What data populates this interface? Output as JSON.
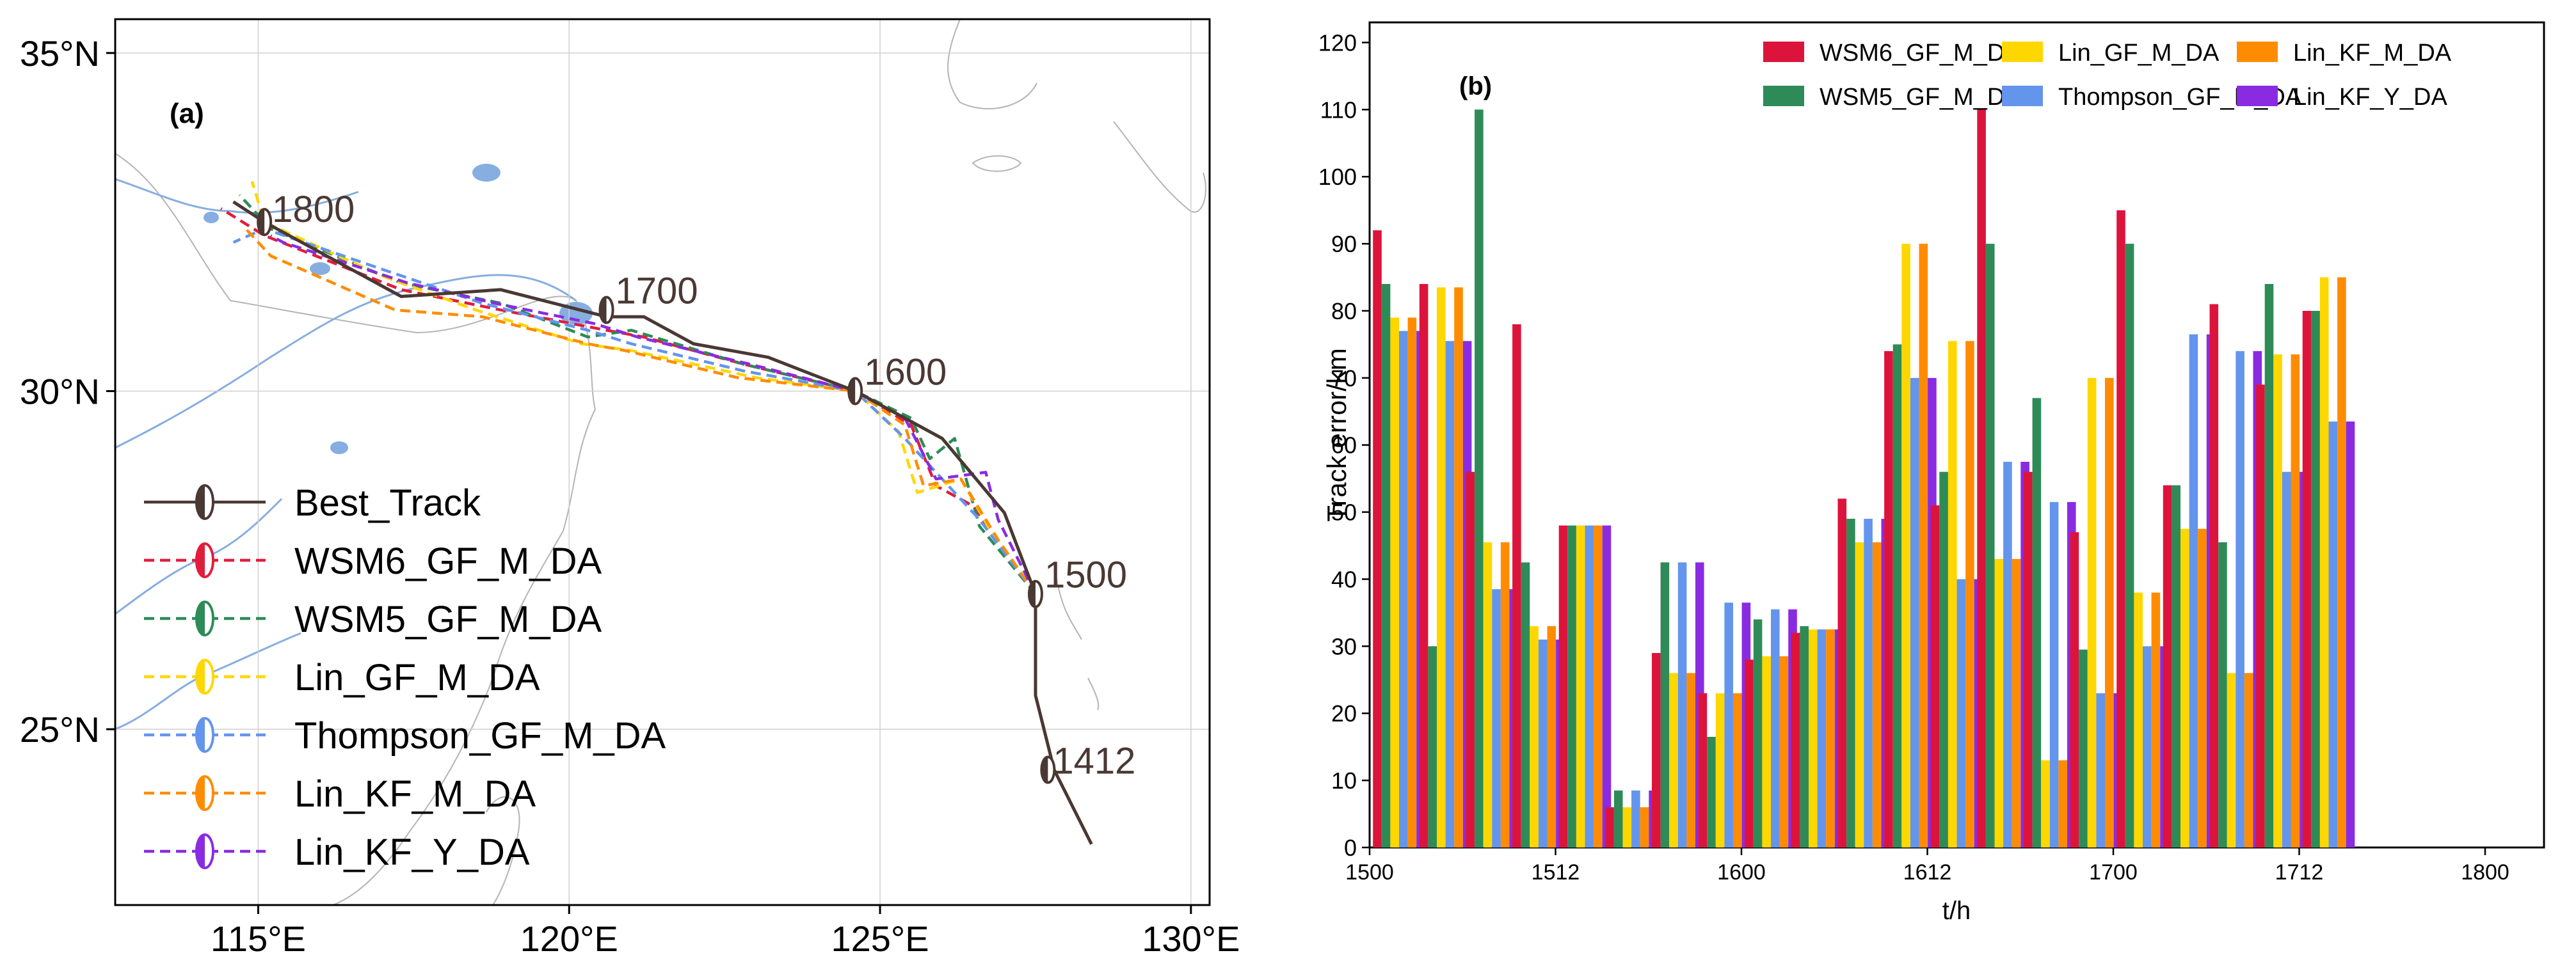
{
  "map_panel": {
    "panel_label": "(a)",
    "type": "track_map",
    "lon_range": [
      112.7,
      130.3
    ],
    "lat_range": [
      22.4,
      35.5
    ],
    "lon_ticks": [
      115,
      120,
      125,
      130
    ],
    "lon_tick_labels": [
      "115°E",
      "120°E",
      "125°E",
      "130°E"
    ],
    "lat_ticks": [
      25,
      30,
      35
    ],
    "lat_tick_labels": [
      "25°N",
      "30°N",
      "35°N"
    ],
    "time_labels": [
      {
        "text": "1800",
        "lon": 115.1,
        "lat": 32.5
      },
      {
        "text": "1700",
        "lon": 120.6,
        "lat": 31.2
      },
      {
        "text": "1600",
        "lon": 124.6,
        "lat": 30.0
      },
      {
        "text": "1500",
        "lon": 127.5,
        "lat": 27.0
      },
      {
        "text": "1412",
        "lon": 127.7,
        "lat": 24.4
      }
    ],
    "legend": [
      {
        "label": "Best_Track",
        "color": "#4a3833",
        "style": "solid"
      },
      {
        "label": "WSM6_GF_M_DA",
        "color": "#e11d3c",
        "style": "dashed"
      },
      {
        "label": "WSM5_GF_M_DA",
        "color": "#2e8b57",
        "style": "dashed"
      },
      {
        "label": "Lin_GF_M_DA",
        "color": "#ffd700",
        "style": "dashed"
      },
      {
        "label": "Thompson_GF_M_DA",
        "color": "#6495ed",
        "style": "dashed"
      },
      {
        "label": "Lin_KF_M_DA",
        "color": "#ff8c00",
        "style": "dashed"
      },
      {
        "label": "Lin_KF_Y_DA",
        "color": "#8a2be2",
        "style": "dashed"
      }
    ],
    "tracks": [
      {
        "name": "Best_Track",
        "points": [
          [
            128.4,
            23.3
          ],
          [
            127.8,
            24.4
          ],
          [
            127.5,
            25.5
          ],
          [
            127.5,
            27.0
          ],
          [
            127.0,
            28.2
          ],
          [
            126.0,
            29.3
          ],
          [
            124.6,
            30.0
          ],
          [
            123.2,
            30.5
          ],
          [
            122.0,
            30.7
          ],
          [
            121.2,
            31.1
          ],
          [
            120.6,
            31.1
          ],
          [
            118.9,
            31.5
          ],
          [
            117.3,
            31.4
          ],
          [
            115.1,
            32.5
          ],
          [
            114.6,
            32.8
          ]
        ]
      },
      {
        "name": "WSM6_GF_M_DA",
        "points": [
          [
            127.5,
            27.0
          ],
          [
            126.5,
            28.3
          ],
          [
            125.9,
            28.6
          ],
          [
            125.5,
            29.5
          ],
          [
            124.6,
            30.0
          ],
          [
            122.8,
            30.4
          ],
          [
            121.2,
            30.8
          ],
          [
            120.6,
            30.9
          ],
          [
            118.9,
            31.2
          ],
          [
            117.3,
            31.5
          ],
          [
            115.1,
            32.3
          ],
          [
            114.4,
            32.7
          ]
        ]
      },
      {
        "name": "WSM5_GF_M_DA",
        "points": [
          [
            127.5,
            27.0
          ],
          [
            126.6,
            28.0
          ],
          [
            126.2,
            29.3
          ],
          [
            125.8,
            29.0
          ],
          [
            125.5,
            29.6
          ],
          [
            124.6,
            30.0
          ],
          [
            122.8,
            30.4
          ],
          [
            121.0,
            30.9
          ],
          [
            120.3,
            30.8
          ],
          [
            118.9,
            31.3
          ],
          [
            117.3,
            31.6
          ],
          [
            115.2,
            32.4
          ],
          [
            114.7,
            32.9
          ]
        ]
      },
      {
        "name": "Lin_GF_M_DA",
        "points": [
          [
            127.5,
            27.0
          ],
          [
            126.8,
            27.9
          ],
          [
            126.3,
            28.7
          ],
          [
            125.6,
            28.5
          ],
          [
            125.3,
            29.4
          ],
          [
            124.6,
            30.0
          ],
          [
            123.0,
            30.2
          ],
          [
            121.0,
            30.6
          ],
          [
            120.2,
            30.7
          ],
          [
            118.5,
            31.2
          ],
          [
            117.0,
            31.7
          ],
          [
            115.1,
            32.5
          ],
          [
            114.9,
            33.1
          ]
        ]
      },
      {
        "name": "Thompson_GF_M_DA",
        "points": [
          [
            127.5,
            27.0
          ],
          [
            126.6,
            28.1
          ],
          [
            125.9,
            28.8
          ],
          [
            125.4,
            29.3
          ],
          [
            124.6,
            30.0
          ],
          [
            122.8,
            30.3
          ],
          [
            121.0,
            30.7
          ],
          [
            120.3,
            30.9
          ],
          [
            118.6,
            31.3
          ],
          [
            117.0,
            31.8
          ],
          [
            115.1,
            32.4
          ],
          [
            114.6,
            32.2
          ]
        ]
      },
      {
        "name": "Lin_KF_M_DA",
        "points": [
          [
            127.5,
            27.0
          ],
          [
            126.9,
            27.8
          ],
          [
            126.3,
            28.7
          ],
          [
            125.7,
            28.6
          ],
          [
            125.4,
            29.5
          ],
          [
            124.6,
            30.0
          ],
          [
            122.7,
            30.2
          ],
          [
            120.9,
            30.6
          ],
          [
            120.3,
            30.7
          ],
          [
            118.6,
            31.1
          ],
          [
            117.2,
            31.2
          ],
          [
            115.2,
            32.0
          ],
          [
            114.8,
            32.4
          ]
        ]
      },
      {
        "name": "Lin_KF_Y_DA",
        "points": [
          [
            127.5,
            27.0
          ],
          [
            126.9,
            28.1
          ],
          [
            126.7,
            28.8
          ],
          [
            125.9,
            28.7
          ],
          [
            125.4,
            29.6
          ],
          [
            124.6,
            30.0
          ],
          [
            122.9,
            30.4
          ],
          [
            121.1,
            30.8
          ],
          [
            120.4,
            31.0
          ],
          [
            118.8,
            31.3
          ],
          [
            117.4,
            31.6
          ],
          [
            115.4,
            32.2
          ],
          [
            115.2,
            32.3
          ]
        ]
      }
    ]
  },
  "chart_data": {
    "type": "bar",
    "panel_label": "(b)",
    "title": "",
    "xlabel": "t/h",
    "ylabel": "Track error/km",
    "ylim": [
      0,
      123
    ],
    "yticks": [
      0,
      10,
      20,
      30,
      40,
      50,
      60,
      70,
      80,
      90,
      100,
      110,
      120
    ],
    "xlim": [
      1500,
      1803
    ],
    "xticks": [
      1500,
      1512,
      1600,
      1612,
      1700,
      1712,
      1800
    ],
    "x_hours": [
      0,
      3,
      6,
      9,
      12,
      15,
      18,
      21,
      24,
      27,
      30,
      33,
      36,
      39,
      42,
      45,
      48,
      51,
      54,
      57,
      60,
      63,
      66,
      69,
      72
    ],
    "series": [
      {
        "name": "WSM6_GF_M_DA",
        "color": "#dc143c",
        "values": [
          92,
          84,
          56,
          78,
          48,
          6,
          29,
          23,
          28,
          32,
          52,
          74,
          51,
          110,
          56,
          47,
          95,
          54,
          81,
          69,
          80,
          null,
          null,
          null,
          null
        ]
      },
      {
        "name": "WSM5_GF_M_DA",
        "color": "#2e8b57",
        "values": [
          84,
          30,
          110,
          42.5,
          48,
          8.5,
          42.5,
          16.5,
          34,
          33,
          49,
          75,
          56,
          90,
          67,
          29.5,
          90,
          54,
          45.5,
          84,
          80,
          null,
          null,
          null,
          null
        ]
      },
      {
        "name": "Lin_GF_M_DA",
        "color": "#ffd700",
        "values": [
          79,
          83.5,
          45.5,
          33,
          48,
          6,
          26,
          23,
          28.5,
          32.5,
          45.5,
          90,
          75.5,
          43,
          13,
          70,
          38,
          47.5,
          26,
          73.5,
          85,
          null,
          null,
          null,
          null
        ]
      },
      {
        "name": "Thompson_GF_M_DA",
        "color": "#6495ed",
        "values": [
          77,
          75.5,
          38.5,
          31,
          48,
          8.5,
          42.5,
          36.5,
          35.5,
          32.5,
          49,
          70,
          40,
          57.5,
          51.5,
          23,
          30,
          76.5,
          74,
          56,
          63.5,
          null,
          null,
          null,
          null
        ]
      },
      {
        "name": "Lin_KF_M_DA",
        "color": "#ff8c00",
        "values": [
          79,
          83.5,
          45.5,
          33,
          48,
          6,
          26,
          23,
          28.5,
          32.5,
          45.5,
          90,
          75.5,
          43,
          13,
          70,
          38,
          47.5,
          26,
          73.5,
          85,
          null,
          null,
          null,
          null
        ]
      },
      {
        "name": "Lin_KF_Y_DA",
        "color": "#8a2be2",
        "values": [
          77,
          75.5,
          38.5,
          31,
          48,
          8.5,
          42.5,
          36.5,
          35.5,
          32.5,
          49,
          70,
          40,
          57.5,
          51.5,
          23,
          30,
          76.5,
          74,
          56,
          63.5,
          null,
          null,
          null,
          null
        ]
      }
    ]
  }
}
